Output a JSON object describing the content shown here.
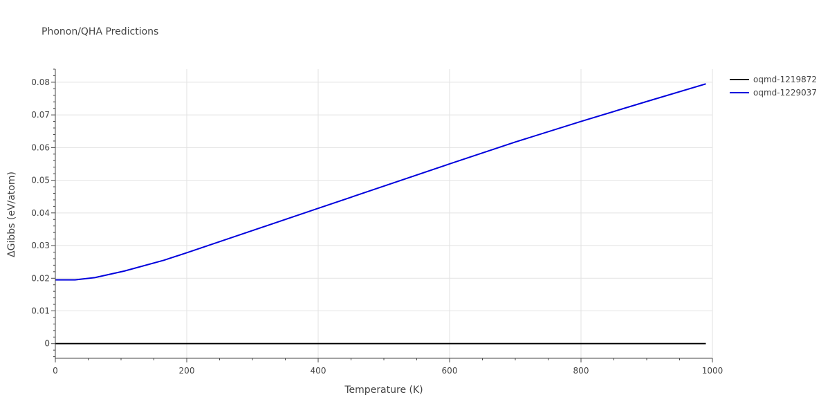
{
  "chart_data": {
    "type": "line",
    "title": "Phonon/QHA Predictions",
    "xlabel": "Temperature (K)",
    "ylabel": "ΔGibbs (eV/atom)",
    "xlim": [
      0,
      1000
    ],
    "ylim": [
      -0.0045,
      0.084
    ],
    "x_ticks": [
      0,
      200,
      400,
      600,
      800,
      1000
    ],
    "x_tick_labels": [
      "0",
      "200",
      "400",
      "600",
      "800",
      "1000"
    ],
    "y_ticks": [
      0,
      0.01,
      0.02,
      0.03,
      0.04,
      0.05,
      0.06,
      0.07,
      0.08
    ],
    "y_tick_labels": [
      "0",
      "0.01",
      "0.02",
      "0.03",
      "0.04",
      "0.05",
      "0.06",
      "0.07",
      "0.08"
    ],
    "grid": true,
    "legend_position": "top-right",
    "series": [
      {
        "name": "oqmd-1219872",
        "color": "#000000",
        "x": [
          0,
          100,
          200,
          300,
          400,
          500,
          600,
          700,
          800,
          900,
          990
        ],
        "y": [
          0,
          0,
          0,
          0,
          0,
          0,
          0,
          0,
          0,
          0,
          0
        ]
      },
      {
        "name": "oqmd-1229037",
        "color": "#0000dd",
        "x": [
          0,
          30,
          60,
          105,
          165,
          200,
          300,
          400,
          500,
          600,
          700,
          800,
          900,
          990
        ],
        "y": [
          0.0195,
          0.0195,
          0.0202,
          0.0222,
          0.0255,
          0.0278,
          0.0346,
          0.0414,
          0.0482,
          0.055,
          0.0617,
          0.068,
          0.0741,
          0.0795
        ]
      }
    ]
  }
}
